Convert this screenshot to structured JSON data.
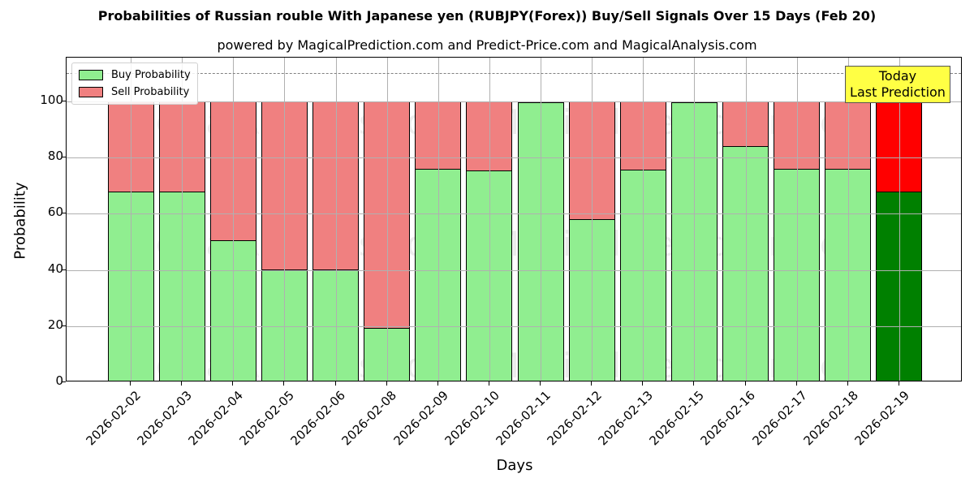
{
  "chart_data": {
    "type": "bar",
    "stacked": true,
    "title": "Probabilities of Russian rouble With Japanese yen (RUBJPY(Forex)) Buy/Sell Signals Over 15 Days (Feb 20)",
    "subtitle": "powered by MagicalPrediction.com and Predict-Price.com and MagicalAnalysis.com",
    "xlabel": "Days",
    "ylabel": "Probability",
    "ylim": [
      0,
      115
    ],
    "yticks": [
      0,
      20,
      40,
      60,
      80,
      100
    ],
    "grid": true,
    "legend_position": "upper left",
    "categories": [
      "2026-02-02",
      "2026-02-03",
      "2026-02-04",
      "2026-02-05",
      "2026-02-06",
      "2026-02-08",
      "2026-02-09",
      "2026-02-10",
      "2026-02-11",
      "2026-02-12",
      "2026-02-13",
      "2026-02-15",
      "2026-02-16",
      "2026-02-17",
      "2026-02-18",
      "2026-02-19"
    ],
    "series": [
      {
        "name": "Buy Probability",
        "color": "#90ee90",
        "values": [
          67.8,
          67.8,
          50.5,
          40.1,
          40.1,
          19.3,
          75.9,
          75.4,
          99.8,
          58.0,
          75.8,
          99.9,
          84.2,
          76.1,
          76.1,
          67.8
        ]
      },
      {
        "name": "Sell Probability",
        "color": "#f08080",
        "values": [
          32.2,
          32.2,
          49.5,
          59.9,
          59.9,
          80.7,
          24.1,
          24.6,
          0.2,
          42.0,
          24.2,
          0.1,
          15.8,
          23.9,
          23.9,
          32.2
        ]
      }
    ],
    "highlight": {
      "index": 15,
      "buy_color": "#008000",
      "sell_color": "#ff0000"
    },
    "annotations": [
      {
        "text": "Today\nLast Prediction",
        "type": "box",
        "color": "#ffff44"
      },
      {
        "type": "hline",
        "y": 110,
        "style": "dashed"
      }
    ],
    "watermarks": [
      "MagicalAnalysis.com",
      "MagicalPrediction.com"
    ]
  },
  "legend": {
    "buy": "Buy Probability",
    "sell": "Sell Probability"
  },
  "today_box": {
    "line1": "Today",
    "line2": "Last Prediction"
  }
}
